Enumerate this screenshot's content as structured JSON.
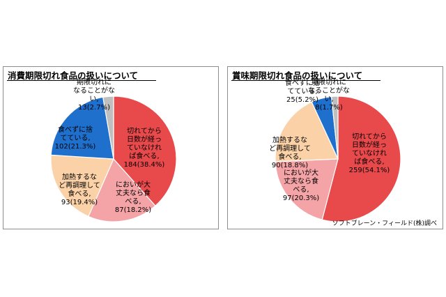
{
  "chart_data": [
    {
      "type": "pie",
      "title": "消費期限切れ食品の扱いについて",
      "start_angle_deg": 0,
      "direction": "clockwise",
      "slices": [
        {
          "label_lines": [
            "切れてから",
            "日数が経っ",
            "ていなけれ",
            "ば食べる,",
            "184(38.4%)"
          ],
          "value": 184,
          "percent": 38.4,
          "color": "#e8494b"
        },
        {
          "label_lines": [
            "においが大",
            "丈夫なら食",
            "べる,",
            "87(18.2%)"
          ],
          "value": 87,
          "percent": 18.2,
          "color": "#f4a3a6"
        },
        {
          "label_lines": [
            "加熱するな",
            "ど再調理して",
            "食べる,",
            "93(19.4%)"
          ],
          "value": 93,
          "percent": 19.4,
          "color": "#fbd2a8"
        },
        {
          "label_lines": [
            "食べずに捨",
            "てている,",
            "102(21.3%)"
          ],
          "value": 102,
          "percent": 21.3,
          "color": "#1f6fcc"
        },
        {
          "label_lines": [
            "期限切れに",
            "なることがな",
            "い,",
            "13(2.7%)"
          ],
          "value": 13,
          "percent": 2.7,
          "color": "#bfbfbf"
        }
      ]
    },
    {
      "type": "pie",
      "title": "賞味期限切れ食品の扱いについて",
      "start_angle_deg": 0,
      "direction": "clockwise",
      "slices": [
        {
          "label_lines": [
            "切れてから",
            "日数が経っ",
            "ていなけれ",
            "ば食べる,",
            "259(54.1%)"
          ],
          "value": 259,
          "percent": 54.1,
          "color": "#e8494b"
        },
        {
          "label_lines": [
            "においが大",
            "丈夫なら食",
            "べる,",
            "97(20.3%)"
          ],
          "value": 97,
          "percent": 20.3,
          "color": "#f4a3a6"
        },
        {
          "label_lines": [
            "加熱するな",
            "ど再調理して",
            "食べる,",
            "90(18.8%)"
          ],
          "value": 90,
          "percent": 18.8,
          "color": "#fbd2a8"
        },
        {
          "label_lines": [
            "食べずに捨",
            "てている,",
            "25(5.2%)"
          ],
          "value": 25,
          "percent": 5.2,
          "color": "#1f6fcc"
        },
        {
          "label_lines": [
            "期限切れに",
            "なることがな",
            "い,",
            "8(1.7%)"
          ],
          "value": 8,
          "percent": 1.7,
          "color": "#bfbfbf"
        }
      ]
    }
  ],
  "credit": "ソフトブレーン・フィールド(株)調べ"
}
